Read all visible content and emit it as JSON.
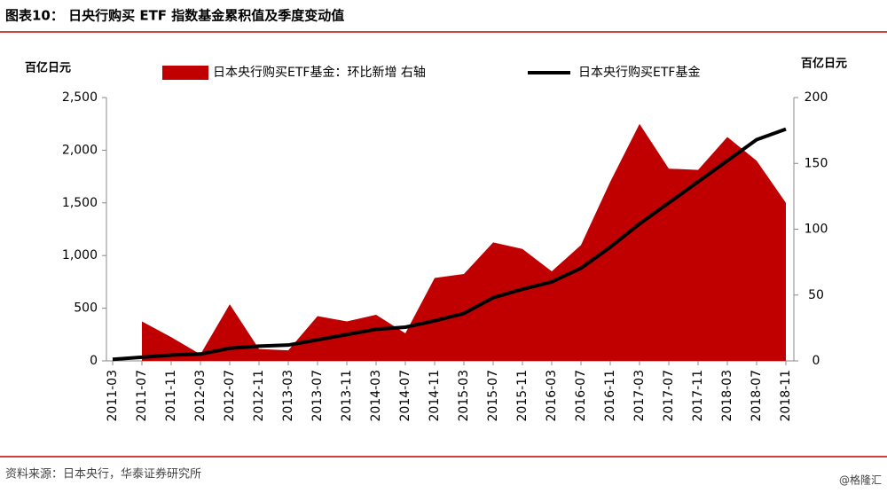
{
  "chart_data": {
    "type": "area_line",
    "title": "图表10： 日央行购买 ETF 指数基金累积值及季度变动值",
    "y_label": "百亿日元",
    "y2_label": "百亿日元",
    "source": "资料来源：日本央行，华泰证券研究所",
    "watermark": "@格隆汇",
    "categories": [
      "2011-03",
      "2011-07",
      "2011-11",
      "2012-03",
      "2012-07",
      "2012-11",
      "2013-03",
      "2013-07",
      "2013-11",
      "2014-03",
      "2014-07",
      "2014-11",
      "2015-03",
      "2015-07",
      "2015-11",
      "2016-03",
      "2016-07",
      "2016-11",
      "2017-03",
      "2017-07",
      "2017-11",
      "2018-03",
      "2018-07",
      "2018-11"
    ],
    "series": [
      {
        "name": "日本央行购买ETF基金：环比新增 右轴",
        "color": "#c00000",
        "axis": "y2",
        "kind": "area",
        "values": [
          null,
          30,
          18,
          5,
          43,
          9,
          8,
          34,
          30,
          35,
          21,
          63,
          66,
          90,
          85,
          68,
          88,
          136,
          180,
          146,
          145,
          170,
          152,
          120
        ]
      },
      {
        "name": "日本央行购买ETF基金",
        "color": "#000000",
        "axis": "y",
        "kind": "line",
        "values": [
          15,
          35,
          55,
          65,
          120,
          140,
          150,
          200,
          250,
          300,
          320,
          380,
          450,
          600,
          680,
          750,
          880,
          1080,
          1300,
          1500,
          1700,
          1900,
          2100,
          2200
        ]
      }
    ],
    "ylim": [
      0,
      2500
    ],
    "yticks": [
      0,
      500,
      {
        "value": 1000,
        "label": "1,000"
      },
      {
        "value": 1500,
        "label": "1,500"
      },
      {
        "value": 2000,
        "label": "2,000"
      },
      {
        "value": 2500,
        "label": "2,500"
      }
    ],
    "y2lim": [
      0,
      200
    ],
    "y2ticks": [
      0,
      50,
      100,
      150,
      200
    ]
  }
}
